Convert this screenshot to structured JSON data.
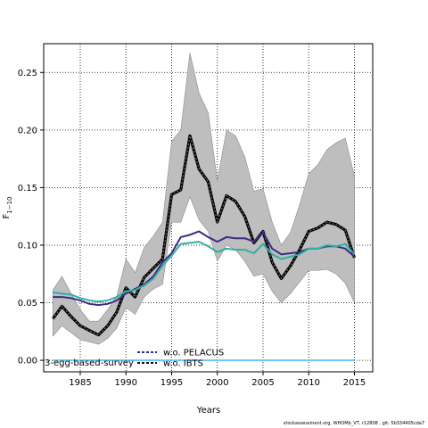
{
  "footer": "stockassessment.org, WHOMb_VT, r12808 , git: 5b334405cda7",
  "chart_data": {
    "type": "line",
    "xlabel": "Years",
    "ylabel_main": "F",
    "ylabel_sub": "1−10",
    "xlim": [
      1981,
      2017
    ],
    "ylim": [
      -0.01,
      0.275
    ],
    "xticks": [
      1985,
      1990,
      1995,
      2000,
      2005,
      2010,
      2015
    ],
    "yticks": [
      0.0,
      0.05,
      0.1,
      0.15,
      0.2,
      0.25
    ],
    "ytick_labels": [
      "0.00",
      "0.05",
      "0.10",
      "0.15",
      "0.20",
      "0.25"
    ],
    "grid": true,
    "legend_position": "bottom-left",
    "x": [
      1982,
      1983,
      1984,
      1985,
      1986,
      1987,
      1988,
      1989,
      1990,
      1991,
      1992,
      1993,
      1994,
      1995,
      1996,
      1997,
      1998,
      1999,
      2000,
      2001,
      2002,
      2003,
      2004,
      2005,
      2006,
      2007,
      2008,
      2009,
      2010,
      2011,
      2012,
      2013,
      2014,
      2015
    ],
    "band": {
      "lower": [
        0.021,
        0.03,
        0.024,
        0.018,
        0.016,
        0.014,
        0.019,
        0.028,
        0.046,
        0.04,
        0.055,
        0.062,
        0.066,
        0.12,
        0.12,
        0.142,
        0.122,
        0.112,
        0.086,
        0.1,
        0.096,
        0.086,
        0.073,
        0.075,
        0.06,
        0.05,
        0.058,
        0.068,
        0.078,
        0.078,
        0.079,
        0.075,
        0.067,
        0.05
      ],
      "upper": [
        0.061,
        0.073,
        0.058,
        0.044,
        0.034,
        0.034,
        0.044,
        0.056,
        0.088,
        0.076,
        0.098,
        0.108,
        0.12,
        0.19,
        0.2,
        0.267,
        0.232,
        0.215,
        0.156,
        0.2,
        0.195,
        0.177,
        0.147,
        0.149,
        0.12,
        0.1,
        0.111,
        0.135,
        0.162,
        0.17,
        0.183,
        0.189,
        0.193,
        0.16
      ]
    },
    "series": [
      {
        "values": [
          0.036,
          0.047,
          0.038,
          0.03,
          0.026,
          0.022,
          0.03,
          0.042,
          0.063,
          0.055,
          0.072,
          0.08,
          0.088,
          0.144,
          0.148,
          0.195,
          0.166,
          0.155,
          0.12,
          0.143,
          0.138,
          0.125,
          0.102,
          0.112,
          0.085,
          0.071,
          0.082,
          0.096,
          0.112,
          0.115,
          0.12,
          0.118,
          0.113,
          0.089
        ],
        "color": "#000000",
        "style": "dashed-black"
      },
      {
        "values": [
          0.055,
          0.055,
          0.054,
          0.052,
          0.049,
          0.048,
          0.049,
          0.052,
          0.058,
          0.062,
          0.066,
          0.073,
          0.085,
          0.093,
          0.107,
          0.109,
          0.112,
          0.107,
          0.103,
          0.107,
          0.106,
          0.106,
          0.103,
          0.111,
          0.097,
          0.092,
          0.093,
          0.094,
          0.097,
          0.097,
          0.099,
          0.099,
          0.097,
          0.09
        ],
        "color": "#3d2a85",
        "style": "solid"
      },
      {
        "values": [
          0.059,
          0.058,
          0.057,
          0.054,
          0.052,
          0.051,
          0.052,
          0.055,
          0.06,
          0.061,
          0.065,
          0.071,
          0.082,
          0.091,
          0.101,
          0.102,
          0.103,
          0.099,
          0.094,
          0.097,
          0.096,
          0.096,
          0.093,
          0.101,
          0.092,
          0.088,
          0.09,
          0.092,
          0.097,
          0.097,
          0.1,
          0.099,
          0.101,
          0.092
        ],
        "color": "#2eb19f",
        "style": "solid"
      },
      {
        "name": "3-egg-based-survey",
        "values": [
          0,
          0,
          0,
          0,
          0,
          0,
          0,
          0,
          0,
          0,
          0,
          0,
          0,
          0,
          0,
          0,
          0,
          0,
          0,
          0,
          0,
          0,
          0,
          0,
          0,
          0,
          0,
          0,
          0,
          0,
          0,
          0,
          0,
          0
        ],
        "color": "#6fc4f0",
        "style": "solid"
      }
    ],
    "legend": [
      {
        "label": "w.o. PELACUS",
        "color": "#1f3a93"
      },
      {
        "label": "w.o. IBTS",
        "color": "#111111"
      }
    ],
    "colors": {
      "band": "#bebebe",
      "band_edge": "#8a8a8a",
      "grid": "#000000"
    }
  }
}
